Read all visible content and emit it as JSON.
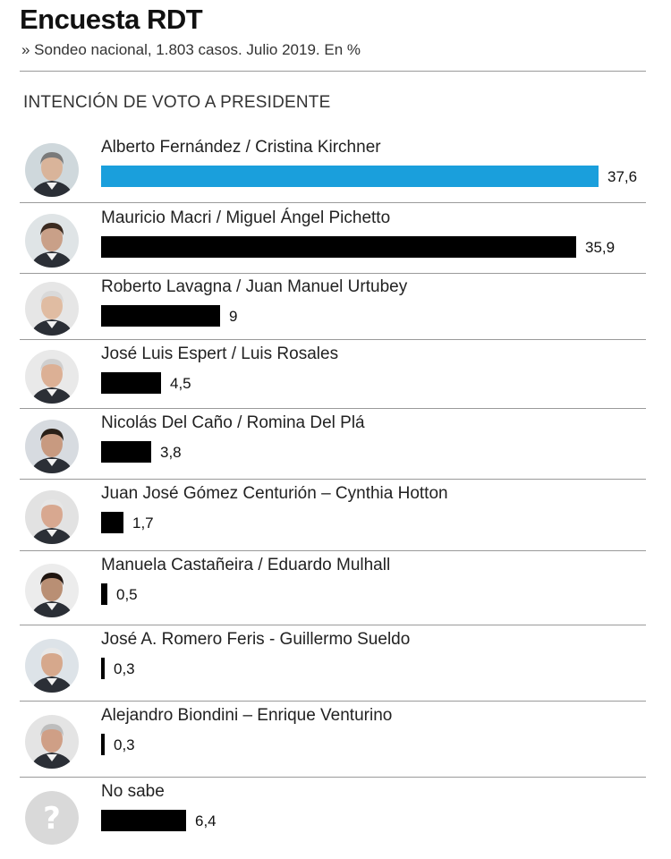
{
  "header": {
    "title": "Encuesta RDT",
    "subtitle": "» Sondeo nacional, 1.803 casos. Julio 2019. En %",
    "section": "INTENCIÓN DE VOTO A PRESIDENTE"
  },
  "colors": {
    "highlight": "#1a9fdc",
    "bar": "#000000",
    "rule": "#9a9a9a"
  },
  "chart_data": {
    "type": "bar",
    "orientation": "horizontal",
    "title": "INTENCIÓN DE VOTO A PRESIDENTE",
    "categories": [
      "Alberto Fernández / Cristina Kirchner",
      "Mauricio Macri / Miguel Ángel Pichetto",
      "Roberto Lavagna / Juan Manuel Urtubey",
      "José Luis Espert / Luis Rosales",
      "Nicolás Del Caño / Romina Del Plá",
      "Juan José Gómez Centurión – Cynthia Hotton",
      "Manuela Castañeira / Eduardo Mulhall",
      "José A. Romero Feris - Guillermo Sueldo",
      "Alejandro Biondini – Enrique Venturino",
      "No sabe"
    ],
    "values": [
      37.6,
      35.9,
      9,
      4.5,
      3.8,
      1.7,
      0.5,
      0.3,
      0.3,
      6.4
    ],
    "value_labels": [
      "37,6",
      "35,9",
      "9",
      "4,5",
      "3,8",
      "1,7",
      "0,5",
      "0,3",
      "0,3",
      "6,4"
    ],
    "highlighted_index": 0,
    "unit": "%",
    "grid": false,
    "legend": "none"
  },
  "avatars": [
    "candidate-photo",
    "candidate-photo",
    "candidate-photo",
    "candidate-photo",
    "candidate-photo",
    "candidate-photo",
    "candidate-photo",
    "candidate-photo",
    "candidate-photo",
    "question-mark-icon"
  ]
}
